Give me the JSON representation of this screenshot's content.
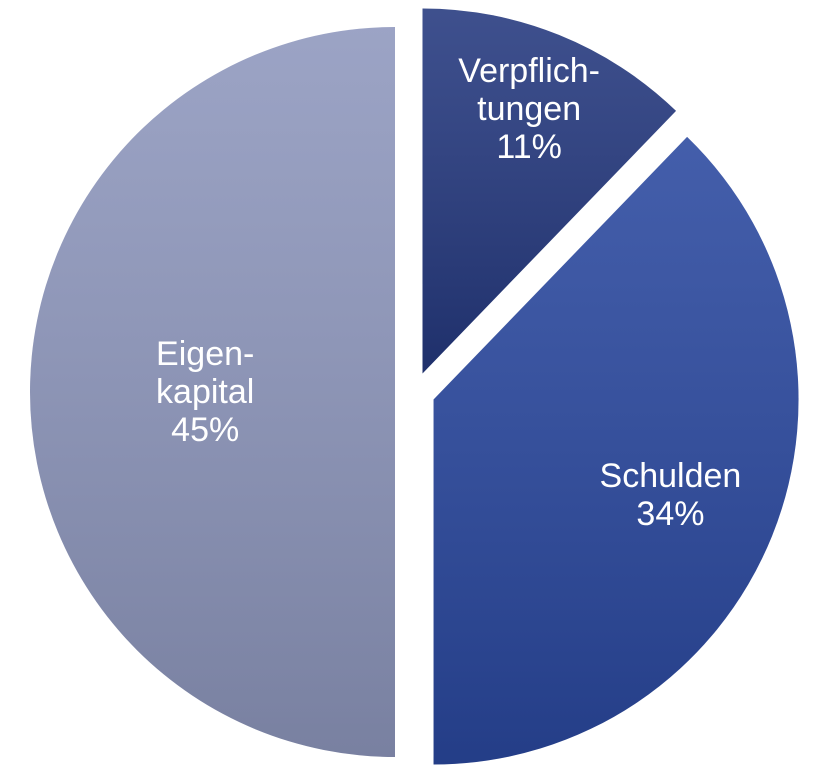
{
  "chart_data": {
    "type": "pie",
    "categories": [
      "Verpflich-\ntungen",
      "Schulden",
      "Eigen-\nkapital"
    ],
    "values": [
      11,
      34,
      45
    ],
    "value_labels": [
      "11%",
      "34%",
      "45%"
    ],
    "colors": [
      "#24387e",
      "#2a489f",
      "#8e97bd"
    ],
    "explode": true
  }
}
